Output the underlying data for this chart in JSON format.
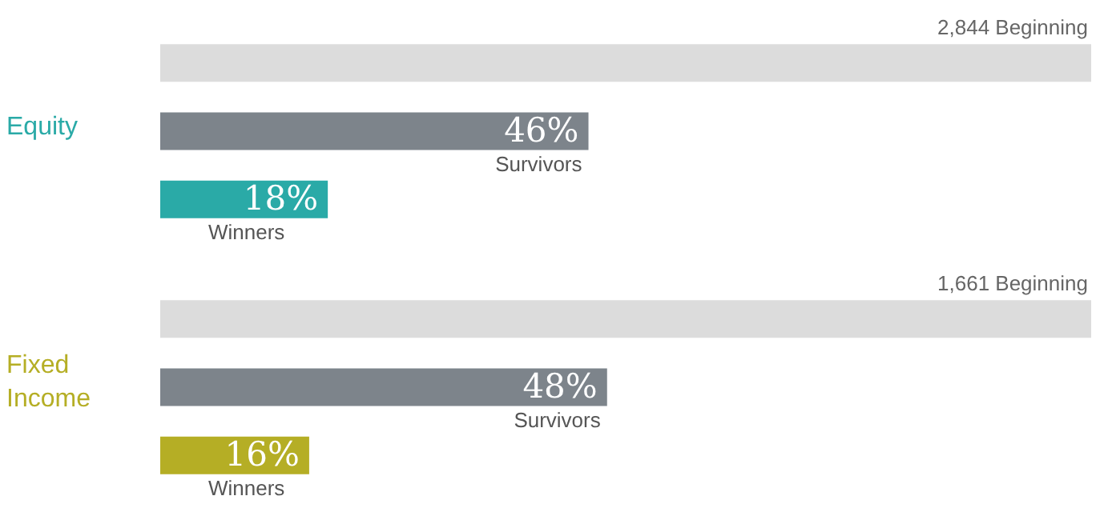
{
  "chart_data": [
    {
      "type": "bar",
      "orientation": "horizontal",
      "title": "Equity",
      "categories": [
        null,
        "Survivors",
        "Winners"
      ],
      "values": [
        100,
        46,
        18
      ],
      "colors": [
        "#dcdcdc",
        "#7d848b",
        "#2aaaa7"
      ],
      "value_labels": [
        null,
        "46%",
        "18%"
      ],
      "annotations": [
        "2,844 Beginning"
      ],
      "xlim": [
        0,
        100
      ],
      "tick_labels": false
    },
    {
      "type": "bar",
      "orientation": "horizontal",
      "title": "Fixed Income",
      "categories": [
        null,
        "Survivors",
        "Winners"
      ],
      "values": [
        100,
        48,
        16
      ],
      "colors": [
        "#dcdcdc",
        "#7d848b",
        "#b5ae25"
      ],
      "value_labels": [
        null,
        "48%",
        "16%"
      ],
      "annotations": [
        "1,661 Beginning"
      ],
      "xlim": [
        0,
        100
      ],
      "tick_labels": false
    }
  ]
}
